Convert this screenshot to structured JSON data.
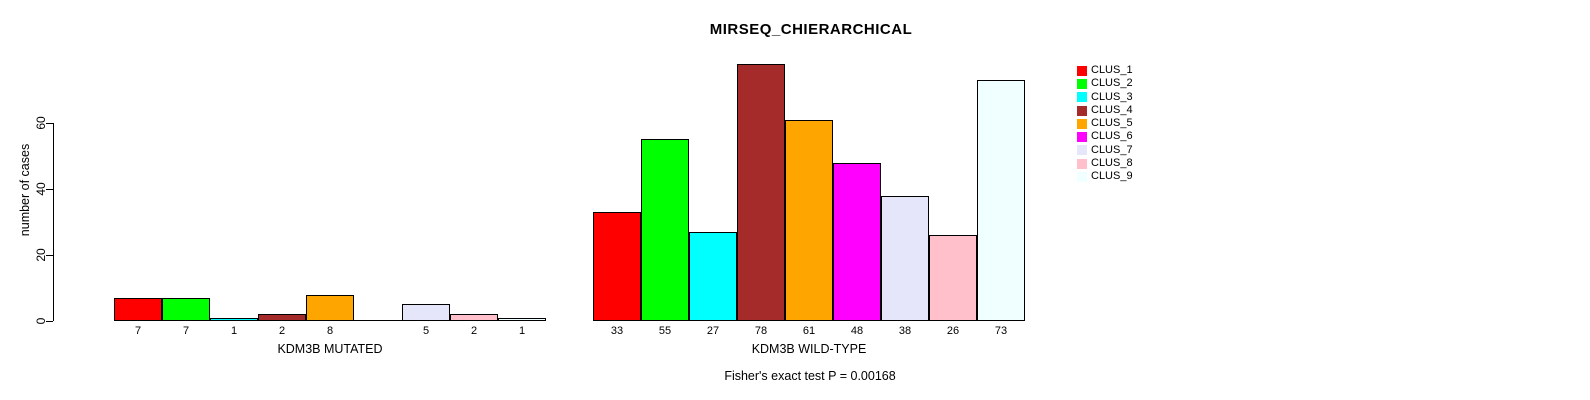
{
  "chart_data": {
    "type": "bar",
    "title": "MIRSEQ_CHIERARCHICAL",
    "ylabel": "number of cases",
    "annotation": "Fisher's exact test P = 0.00168",
    "yticks": [
      0,
      20,
      40,
      60
    ],
    "ylim": [
      0,
      80
    ],
    "grid": false,
    "legend_position": "right",
    "legend": [
      {
        "label": "CLUS_1",
        "color": "#FF0000"
      },
      {
        "label": "CLUS_2",
        "color": "#00FF00"
      },
      {
        "label": "CLUS_3",
        "color": "#00FFFF"
      },
      {
        "label": "CLUS_4",
        "color": "#A52A2A"
      },
      {
        "label": "CLUS_5",
        "color": "#FFA500"
      },
      {
        "label": "CLUS_6",
        "color": "#FF00FF"
      },
      {
        "label": "CLUS_7",
        "color": "#E6E6FA"
      },
      {
        "label": "CLUS_8",
        "color": "#FFC0CB"
      },
      {
        "label": "CLUS_9",
        "color": "#F0FFFF"
      }
    ],
    "groups": [
      {
        "label": "KDM3B MUTATED",
        "values": [
          7,
          7,
          1,
          2,
          8,
          0,
          5,
          2,
          1
        ]
      },
      {
        "label": "KDM3B WILD-TYPE",
        "values": [
          33,
          55,
          27,
          78,
          61,
          48,
          38,
          26,
          73
        ]
      }
    ]
  }
}
